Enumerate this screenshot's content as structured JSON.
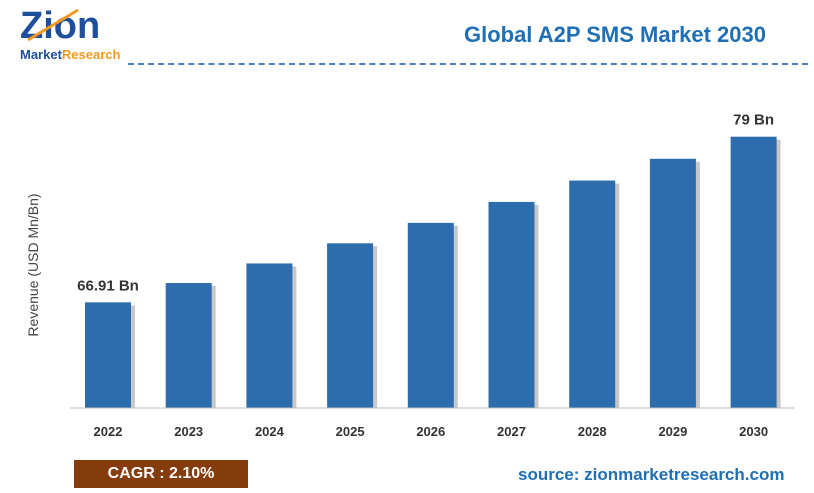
{
  "logo": {
    "brand": "Zion",
    "sub": "Market Research"
  },
  "header": {
    "title": "Global A2P SMS Market 2030"
  },
  "chart_data": {
    "type": "bar",
    "title": "Global A2P SMS Market 2030",
    "ylabel": "Revenue (USD Mn/Bn)",
    "xlabel": "",
    "categories": [
      "2022",
      "2023",
      "2024",
      "2025",
      "2026",
      "2027",
      "2028",
      "2029",
      "2030"
    ],
    "values": [
      66.91,
      68.32,
      69.75,
      71.22,
      72.71,
      74.24,
      75.8,
      77.39,
      79.0
    ],
    "data_labels": {
      "0": "66.91 Bn",
      "8": "79 Bn"
    },
    "ylim": [
      59.2,
      80
    ],
    "grid": false,
    "colors": {
      "bar": "#2e6dad",
      "shadow": "#c8c8c8"
    }
  },
  "footer": {
    "cagr": "CAGR : 2.10%",
    "source": "source: zionmarketresearch.com"
  }
}
